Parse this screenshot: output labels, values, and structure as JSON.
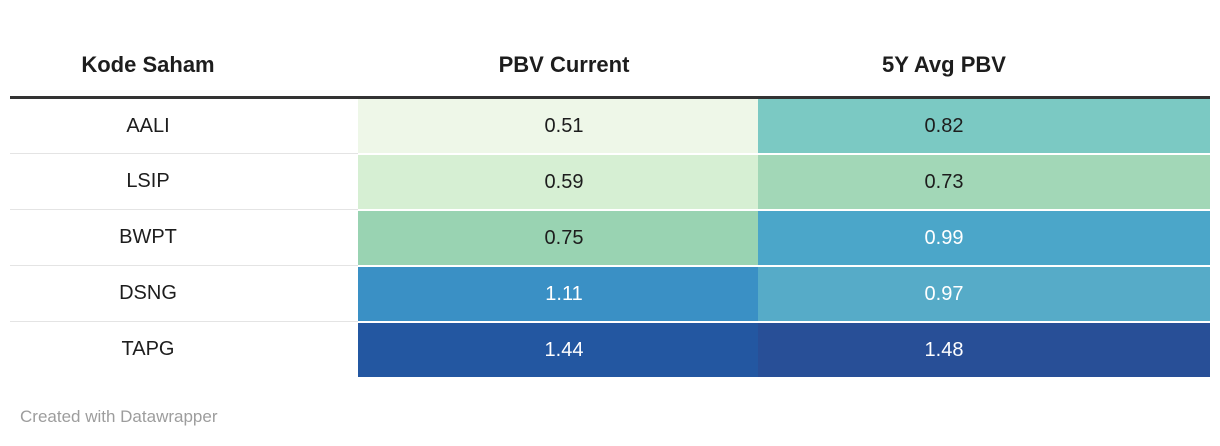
{
  "header": {
    "columns": [
      "Kode Saham",
      "PBV Current",
      "5Y Avg PBV"
    ]
  },
  "rows": [
    {
      "kode": "AALI",
      "pbv": "0.51",
      "avg": "0.82",
      "pbv_bg": "#eef7e8",
      "pbv_fg": "#1d1d1d",
      "avg_bg": "#7bc9c3",
      "avg_fg": "#1d1d1d"
    },
    {
      "kode": "LSIP",
      "pbv": "0.59",
      "avg": "0.73",
      "pbv_bg": "#d6efd3",
      "pbv_fg": "#1d1d1d",
      "avg_bg": "#a2d7b7",
      "avg_fg": "#1d1d1d"
    },
    {
      "kode": "BWPT",
      "pbv": "0.75",
      "avg": "0.99",
      "pbv_bg": "#99d3b2",
      "pbv_fg": "#1d1d1d",
      "avg_bg": "#4ba6c9",
      "avg_fg": "#ffffff"
    },
    {
      "kode": "DSNG",
      "pbv": "1.11",
      "avg": "0.97",
      "pbv_bg": "#3a90c5",
      "pbv_fg": "#ffffff",
      "avg_bg": "#56abc8",
      "avg_fg": "#ffffff"
    },
    {
      "kode": "TAPG",
      "pbv": "1.44",
      "avg": "1.48",
      "pbv_bg": "#2357a1",
      "pbv_fg": "#ffffff",
      "avg_bg": "#284f97",
      "avg_fg": "#ffffff"
    }
  ],
  "footer": {
    "attribution": "Created with Datawrapper",
    "color": "#9d9d9d"
  },
  "colors": {
    "header_rule": "#333333",
    "row_divider": "#e4e4e4",
    "text_dark": "#1d1d1d",
    "text_light": "#ffffff",
    "background": "#ffffff"
  },
  "chart_data": {
    "type": "table",
    "title": "",
    "columns": [
      "Kode Saham",
      "PBV Current",
      "5Y Avg PBV"
    ],
    "rows": [
      [
        "AALI",
        0.51,
        0.82
      ],
      [
        "LSIP",
        0.59,
        0.73
      ],
      [
        "BWPT",
        0.75,
        0.99
      ],
      [
        "DSNG",
        1.11,
        0.97
      ],
      [
        "TAPG",
        1.44,
        1.48
      ]
    ],
    "heatmap": true,
    "color_scale": [
      "#eef7e8",
      "#d6efd3",
      "#a2d7b7",
      "#99d3b2",
      "#7bc9c3",
      "#56abc8",
      "#4ba6c9",
      "#3a90c5",
      "#284f97",
      "#2357a1"
    ],
    "value_range": [
      0.51,
      1.48
    ],
    "legend_position": "none",
    "grid": "off"
  }
}
